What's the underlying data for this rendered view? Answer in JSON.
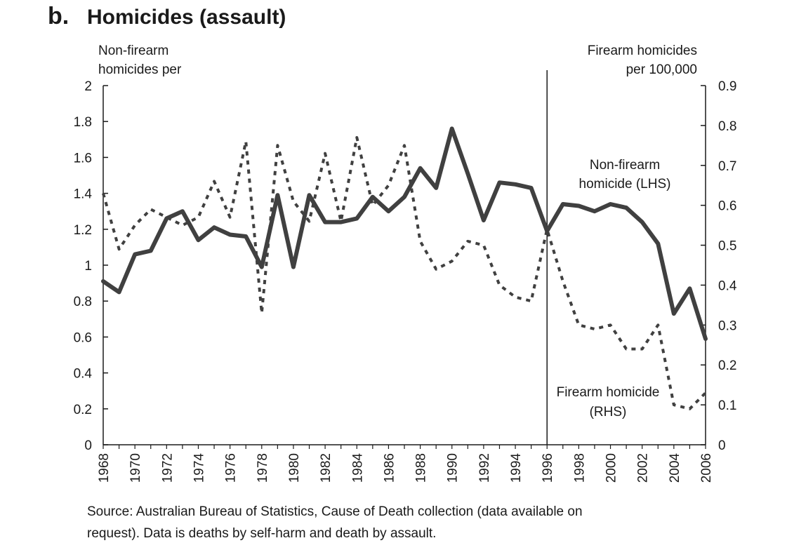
{
  "header": {
    "panel_letter": "b.",
    "title": "Homicides (assault)"
  },
  "axes": {
    "left_label_lines": [
      "Non-firearm",
      "homicides per"
    ],
    "right_label_lines": [
      "Firearm homicides",
      "per 100,000"
    ]
  },
  "footer": {
    "source_lines": [
      "Source:  Australian Bureau of Statistics, Cause of Death collection (data available on",
      "request). Data is deaths by self-harm and death by assault."
    ]
  },
  "colors": {
    "series_line": "#404040",
    "axis": "#1a1a1a"
  },
  "chart_data": {
    "type": "line",
    "x": [
      1968,
      1969,
      1970,
      1971,
      1972,
      1973,
      1974,
      1975,
      1976,
      1977,
      1978,
      1979,
      1980,
      1981,
      1982,
      1983,
      1984,
      1985,
      1986,
      1987,
      1988,
      1989,
      1990,
      1991,
      1992,
      1993,
      1994,
      1995,
      1996,
      1997,
      1998,
      1999,
      2000,
      2001,
      2002,
      2003,
      2004,
      2005,
      2006
    ],
    "x_tick_labels": [
      "1968",
      "1970",
      "1972",
      "1974",
      "1976",
      "1978",
      "1980",
      "1982",
      "1984",
      "1986",
      "1988",
      "1990",
      "1992",
      "1994",
      "1996",
      "1998",
      "2000",
      "2002",
      "2004",
      "2006"
    ],
    "xlim": [
      1968,
      2006
    ],
    "left_axis": {
      "ylim": [
        0,
        2
      ],
      "ticks": [
        "0",
        "0.2",
        "0.4",
        "0.6",
        "0.8",
        "1",
        "1.2",
        "1.4",
        "1.6",
        "1.8",
        "2"
      ]
    },
    "right_axis": {
      "ylim": [
        0,
        0.9
      ],
      "ticks": [
        "0",
        "0.1",
        "0.2",
        "0.3",
        "0.4",
        "0.5",
        "0.6",
        "0.7",
        "0.8",
        "0.9"
      ]
    },
    "vline_x": 1996,
    "series": [
      {
        "name": "Non-firearm homicide (LHS)",
        "label_lines": [
          "Non-firearm",
          "homicide (LHS)"
        ],
        "axis": "left",
        "style": "solid",
        "values": [
          0.91,
          0.85,
          1.06,
          1.08,
          1.26,
          1.3,
          1.14,
          1.21,
          1.17,
          1.16,
          0.99,
          1.39,
          0.99,
          1.39,
          1.24,
          1.24,
          1.26,
          1.38,
          1.3,
          1.38,
          1.54,
          1.43,
          1.76,
          1.51,
          1.25,
          1.46,
          1.45,
          1.43,
          1.19,
          1.34,
          1.33,
          1.3,
          1.34,
          1.32,
          1.24,
          1.12,
          0.73,
          0.87,
          0.59
        ]
      },
      {
        "name": "Firearm homicide (RHS)",
        "label_lines": [
          "Firearm homicide",
          "(RHS)"
        ],
        "axis": "right",
        "style": "dotted",
        "values": [
          0.63,
          0.49,
          0.55,
          0.59,
          0.57,
          0.55,
          0.57,
          0.66,
          0.57,
          0.76,
          0.33,
          0.75,
          0.61,
          0.56,
          0.73,
          0.56,
          0.77,
          0.6,
          0.65,
          0.75,
          0.51,
          0.44,
          0.46,
          0.51,
          0.5,
          0.4,
          0.37,
          0.36,
          0.54,
          0.41,
          0.3,
          0.29,
          0.3,
          0.24,
          0.24,
          0.3,
          0.1,
          0.09,
          0.13
        ]
      }
    ]
  }
}
